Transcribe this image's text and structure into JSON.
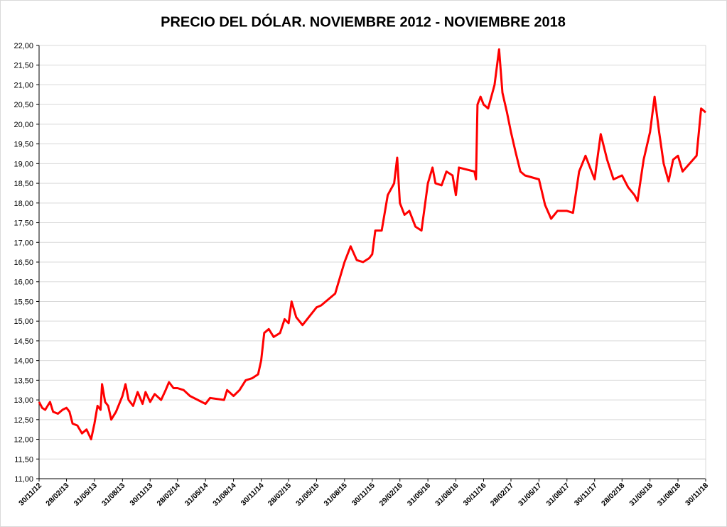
{
  "chart_data": {
    "type": "line",
    "title": "PRECIO DEL DÓLAR. NOVIEMBRE 2012 - NOVIEMBRE 2018",
    "x": [
      "30/11/12",
      "10/12/12",
      "20/12/12",
      "05/01/13",
      "15/01/13",
      "31/01/13",
      "15/02/13",
      "28/02/13",
      "10/03/13",
      "20/03/13",
      "05/04/13",
      "20/04/13",
      "05/05/13",
      "20/05/13",
      "31/05/13",
      "10/06/13",
      "20/06/13",
      "25/06/13",
      "05/07/13",
      "15/07/13",
      "25/07/13",
      "10/08/13",
      "31/08/13",
      "10/09/13",
      "20/09/13",
      "05/10/13",
      "20/10/13",
      "05/11/13",
      "15/11/13",
      "30/11/13",
      "15/12/13",
      "05/01/14",
      "20/01/14",
      "31/01/14",
      "15/02/14",
      "28/02/14",
      "20/03/14",
      "10/04/14",
      "31/05/14",
      "15/06/14",
      "31/07/14",
      "10/08/14",
      "31/08/14",
      "20/09/14",
      "10/10/14",
      "31/10/14",
      "20/11/14",
      "30/11/14",
      "10/12/14",
      "25/12/14",
      "10/01/15",
      "31/01/15",
      "15/02/15",
      "28/02/15",
      "10/03/15",
      "25/03/15",
      "15/04/15",
      "31/05/15",
      "15/06/15",
      "31/07/15",
      "31/08/15",
      "20/09/15",
      "10/10/15",
      "31/10/15",
      "20/11/15",
      "30/11/15",
      "10/12/15",
      "31/12/15",
      "20/01/16",
      "10/02/16",
      "20/02/16",
      "29/02/16",
      "15/03/16",
      "31/03/16",
      "20/04/16",
      "10/05/16",
      "31/05/16",
      "15/06/16",
      "25/06/16",
      "15/07/16",
      "31/07/16",
      "20/08/16",
      "31/08/16",
      "10/09/16",
      "31/10/16",
      "05/11/16",
      "10/11/16",
      "20/11/16",
      "30/11/16",
      "15/12/16",
      "05/01/17",
      "20/01/17",
      "31/01/17",
      "15/02/17",
      "28/02/17",
      "15/03/17",
      "31/03/17",
      "15/04/17",
      "31/05/17",
      "20/06/17",
      "10/07/17",
      "31/07/17",
      "31/08/17",
      "20/09/17",
      "10/10/17",
      "31/10/17",
      "30/11/17",
      "20/12/17",
      "10/01/18",
      "31/01/18",
      "28/02/18",
      "20/03/18",
      "10/04/18",
      "20/04/18",
      "10/05/18",
      "31/05/18",
      "15/06/18",
      "30/06/18",
      "15/07/18",
      "31/07/18",
      "15/08/18",
      "31/08/18",
      "15/09/18",
      "31/10/18",
      "15/11/18",
      "30/11/18"
    ],
    "series": [
      {
        "color": "#ff0000",
        "values": [
          12.95,
          12.8,
          12.75,
          12.95,
          12.7,
          12.65,
          12.75,
          12.8,
          12.7,
          12.4,
          12.35,
          12.15,
          12.25,
          12.0,
          12.4,
          12.85,
          12.75,
          13.4,
          12.95,
          12.85,
          12.5,
          12.7,
          13.1,
          13.4,
          13.0,
          12.85,
          13.2,
          12.9,
          13.2,
          12.95,
          13.15,
          13.0,
          13.25,
          13.45,
          13.3,
          13.3,
          13.25,
          13.1,
          12.9,
          13.05,
          13.0,
          13.25,
          13.1,
          13.25,
          13.5,
          13.55,
          13.65,
          14.0,
          14.7,
          14.8,
          14.6,
          14.7,
          15.05,
          14.95,
          15.5,
          15.1,
          14.9,
          15.35,
          15.4,
          15.7,
          16.5,
          16.9,
          16.55,
          16.5,
          16.6,
          16.7,
          17.3,
          17.3,
          18.2,
          18.5,
          19.15,
          18.0,
          17.7,
          17.8,
          17.4,
          17.3,
          18.5,
          18.9,
          18.5,
          18.45,
          18.8,
          18.7,
          18.2,
          18.9,
          18.8,
          18.6,
          20.5,
          20.7,
          20.5,
          20.4,
          21.0,
          21.9,
          20.8,
          20.3,
          19.8,
          19.3,
          18.8,
          18.7,
          18.6,
          17.95,
          17.6,
          17.8,
          17.8,
          17.75,
          18.8,
          19.2,
          18.6,
          19.75,
          19.1,
          18.6,
          18.7,
          18.4,
          18.2,
          18.05,
          19.1,
          19.8,
          20.7,
          19.8,
          19.0,
          18.55,
          19.1,
          19.2,
          18.8,
          19.2,
          20.4,
          20.3
        ]
      }
    ],
    "xlim": [
      "30/11/12",
      "30/11/18"
    ],
    "xticks": [
      "30/11/12",
      "28/02/13",
      "31/05/13",
      "31/08/13",
      "30/11/13",
      "28/02/14",
      "31/05/14",
      "31/08/14",
      "30/11/14",
      "28/02/15",
      "31/05/15",
      "31/08/15",
      "30/11/15",
      "29/02/16",
      "31/05/16",
      "31/08/16",
      "30/11/16",
      "28/02/17",
      "31/05/17",
      "31/08/17",
      "30/11/17",
      "28/02/18",
      "31/05/18",
      "31/08/18",
      "30/11/18"
    ],
    "ylim": [
      11,
      22
    ],
    "yticks": [
      {
        "value": 11,
        "label": "11,00"
      },
      {
        "value": 11.5,
        "label": "11,50"
      },
      {
        "value": 12,
        "label": "12,00"
      },
      {
        "value": 12.5,
        "label": "12,50"
      },
      {
        "value": 13,
        "label": "13,00"
      },
      {
        "value": 13.5,
        "label": "13,50"
      },
      {
        "value": 14,
        "label": "14,00"
      },
      {
        "value": 14.5,
        "label": "14,50"
      },
      {
        "value": 15,
        "label": "15,00"
      },
      {
        "value": 15.5,
        "label": "15,50"
      },
      {
        "value": 16,
        "label": "16,00"
      },
      {
        "value": 16.5,
        "label": "16,50"
      },
      {
        "value": 17,
        "label": "17,00"
      },
      {
        "value": 17.5,
        "label": "17,50"
      },
      {
        "value": 18,
        "label": "18,00"
      },
      {
        "value": 18.5,
        "label": "18,50"
      },
      {
        "value": 19,
        "label": "19,00"
      },
      {
        "value": 19.5,
        "label": "19,50"
      },
      {
        "value": 20,
        "label": "20,00"
      },
      {
        "value": 20.5,
        "label": "20,50"
      },
      {
        "value": 21,
        "label": "21,00"
      },
      {
        "value": 21.5,
        "label": "21,50"
      },
      {
        "value": 22,
        "label": "22,00"
      }
    ],
    "grid": true
  }
}
